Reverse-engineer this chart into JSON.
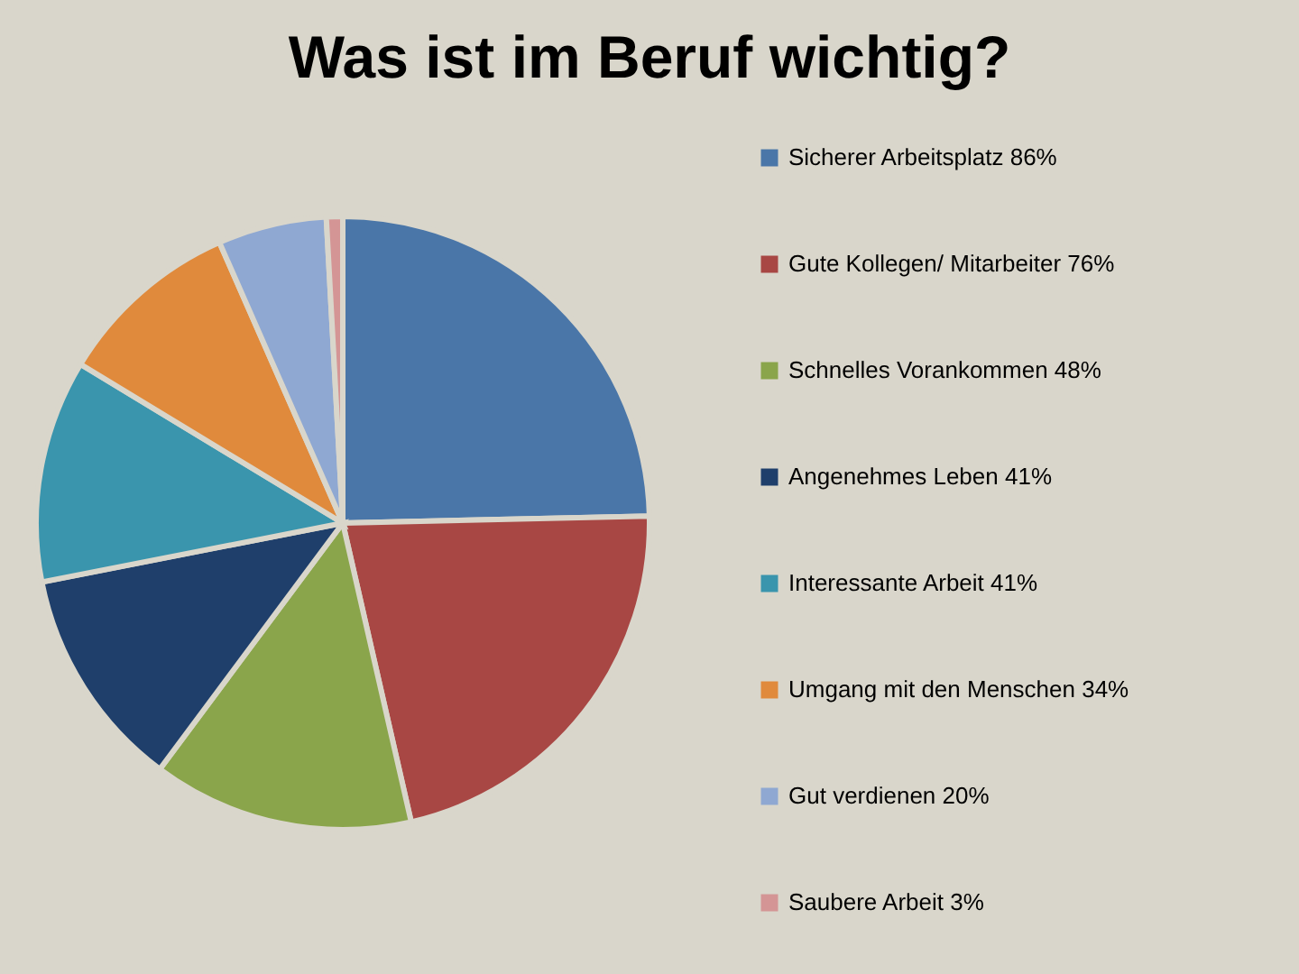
{
  "chart_data": {
    "type": "pie",
    "title": "Was ist im Beruf wichtig?",
    "categories": [
      "Sicherer Arbeitsplatz",
      "Gute Kollegen/ Mitarbeiter",
      "Schnelles Vorankommen",
      "Angenehmes Leben",
      "Interessante Arbeit",
      "Umgang mit den Menschen",
      "Gut verdienen",
      "Saubere Arbeit"
    ],
    "values": [
      86,
      76,
      48,
      41,
      41,
      34,
      20,
      3
    ],
    "value_labels": [
      "86%",
      "76%",
      "48%",
      "41%",
      "41%",
      "34%",
      "20%",
      "3%"
    ],
    "colors": [
      "#4a76a8",
      "#a84744",
      "#8aa54b",
      "#1f3f6b",
      "#3a95ad",
      "#e08a3c",
      "#8fa8d2",
      "#d49595"
    ],
    "legend": "right"
  }
}
